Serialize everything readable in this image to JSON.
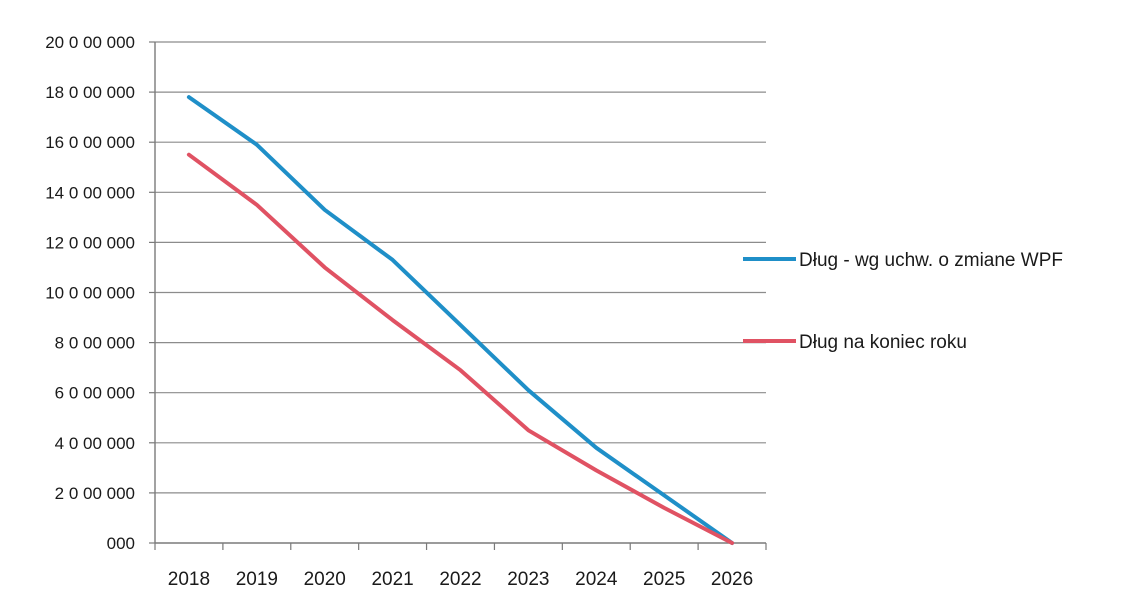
{
  "chart_data": {
    "type": "line",
    "title": "",
    "xlabel": "",
    "ylabel": "",
    "categories": [
      "2018",
      "2019",
      "2020",
      "2021",
      "2022",
      "2023",
      "2024",
      "2025",
      "2026"
    ],
    "y_tick_labels": [
      "000",
      "2 0 00 000",
      "4 0 00 000",
      "6 0 00 000",
      "8 0 00 000",
      "10 0 00 000",
      "12 0 00 000",
      "14 0 00 000",
      "16 0 00 000",
      "18 0 00 000",
      "20 0 00 000"
    ],
    "ylim": [
      0,
      20000000
    ],
    "grid": true,
    "legend_position": "right",
    "series": [
      {
        "name": "Dług - wg uchw. o zmiane WPF",
        "color": "#1f8fc8",
        "values": [
          17800000,
          15900000,
          13300000,
          11300000,
          8700000,
          6100000,
          3800000,
          1900000,
          0
        ]
      },
      {
        "name": "Dług na koniec roku",
        "color": "#e05263",
        "values": [
          15500000,
          13500000,
          11000000,
          8900000,
          6900000,
          4500000,
          2900000,
          1400000,
          0
        ]
      }
    ]
  }
}
